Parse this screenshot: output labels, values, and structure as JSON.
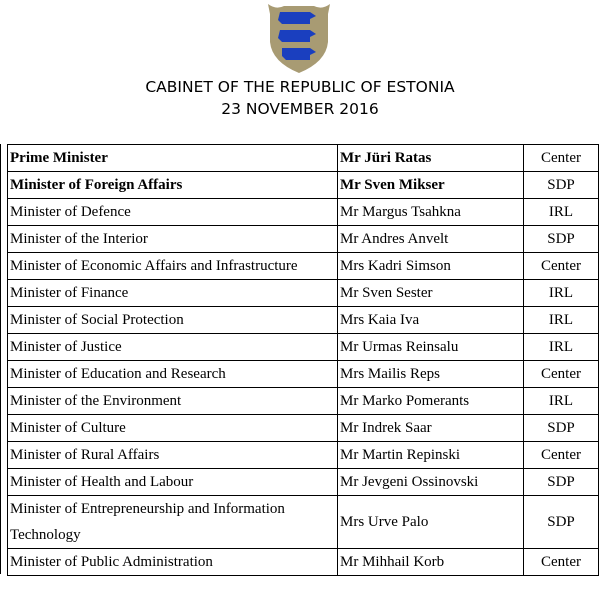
{
  "header": {
    "emblem": "estonian-coat-of-arms",
    "title": "CABINET OF THE REPUBLIC OF ESTONIA",
    "date": "23 NOVEMBER 2016"
  },
  "colors": {
    "shield": "#a89b73",
    "lions": "#1a3fbf"
  },
  "rows": [
    {
      "position": "Prime Minister",
      "name": "Mr Jüri Ratas",
      "party": "Center",
      "bold": true
    },
    {
      "position": "Minister of Foreign Affairs",
      "name": "Mr Sven Mikser",
      "party": "SDP",
      "bold": true
    },
    {
      "position": "Minister of Defence",
      "name": "Mr Margus Tsahkna",
      "party": "IRL"
    },
    {
      "position": "Minister of the Interior",
      "name": "Mr Andres Anvelt",
      "party": "SDP"
    },
    {
      "position": "Minister of Economic Affairs and Infrastructure",
      "name": "Mrs Kadri Simson",
      "party": "Center"
    },
    {
      "position": "Minister of Finance",
      "name": "Mr Sven Sester",
      "party": "IRL"
    },
    {
      "position": "Minister of Social Protection",
      "name": "Mrs Kaia Iva",
      "party": "IRL"
    },
    {
      "position": "Minister of Justice",
      "name": "Mr Urmas Reinsalu",
      "party": "IRL"
    },
    {
      "position": "Minister of Education and Research",
      "name": "Mrs Mailis Reps",
      "party": "Center"
    },
    {
      "position": "Minister of the Environment",
      "name": "Mr Marko Pomerants",
      "party": "IRL"
    },
    {
      "position": "Minister of Culture",
      "name": "Mr Indrek Saar",
      "party": "SDP"
    },
    {
      "position": "Minister of Rural Affairs",
      "name": "Mr Martin Repinski",
      "party": "Center"
    },
    {
      "position": "Minister of Health and Labour",
      "name": "Mr Jevgeni Ossinovski",
      "party": "SDP"
    },
    {
      "position": "Minister of Entrepreneurship and Information Technology",
      "name": "Mrs Urve Palo",
      "party": "SDP",
      "tall": true
    },
    {
      "position": "Minister of Public Administration",
      "name": "Mr Mihhail Korb",
      "party": "Center"
    }
  ]
}
